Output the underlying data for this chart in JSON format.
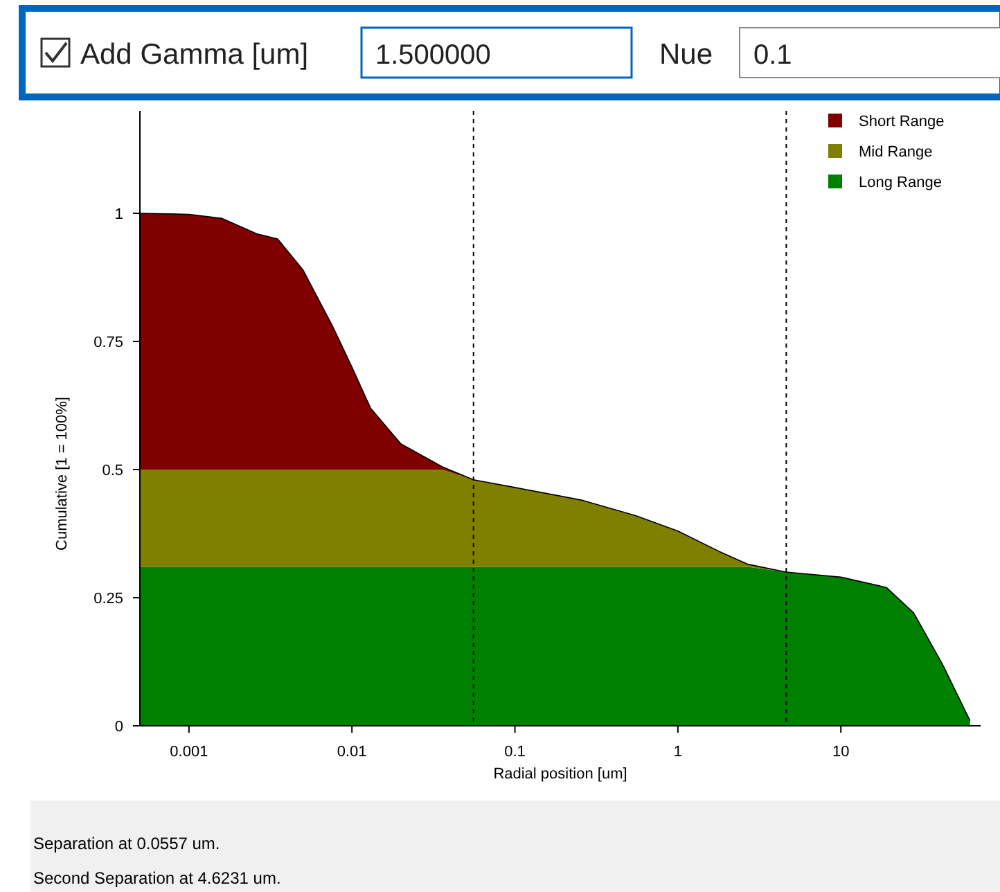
{
  "chart_data": {
    "type": "area",
    "stacked": true,
    "log": "x",
    "xlabel": "Radial position [um]",
    "ylabel": "Cumulative  [1 = 100%]",
    "x": [
      0.0005,
      0.001,
      0.0016,
      0.0026,
      0.0035,
      0.005,
      0.0076,
      0.01,
      0.013,
      0.02,
      0.036,
      0.0557,
      0.1,
      0.26,
      0.55,
      1,
      1.8,
      2.7,
      4.6,
      10,
      19,
      28,
      42,
      62
    ],
    "series": [
      {
        "name": "Long Range",
        "color": "#008000",
        "values": [
          0.31,
          0.31,
          0.31,
          0.31,
          0.31,
          0.31,
          0.31,
          0.31,
          0.31,
          0.31,
          0.31,
          0.31,
          0.31,
          0.31,
          0.31,
          0.31,
          0.31,
          0.31,
          0.3,
          0.29,
          0.27,
          0.22,
          0.12,
          0.01
        ]
      },
      {
        "name": "Mid Range",
        "color": "#808000",
        "values": [
          0.19,
          0.19,
          0.19,
          0.19,
          0.19,
          0.19,
          0.19,
          0.19,
          0.19,
          0.19,
          0.19,
          0.17,
          0.155,
          0.13,
          0.1,
          0.07,
          0.03,
          0.005,
          0,
          0,
          0,
          0,
          0,
          0
        ]
      },
      {
        "name": "Short Range",
        "color": "#800000",
        "values": [
          0.5,
          0.498,
          0.49,
          0.46,
          0.45,
          0.39,
          0.28,
          0.2,
          0.12,
          0.05,
          0.005,
          0,
          0,
          0,
          0,
          0,
          0,
          0,
          0,
          0,
          0,
          0,
          0,
          0
        ]
      }
    ],
    "xlim": [
      0.0005,
      72
    ],
    "xticks": [
      0.001,
      0.01,
      0.1,
      1,
      10
    ],
    "ylim": [
      0,
      1.2
    ],
    "yticks": [
      0,
      0.25,
      0.5,
      0.75,
      1
    ],
    "grid": false,
    "legend": "top right",
    "ref_lines": [
      {
        "axis": "x",
        "value": 0.0557,
        "line_style": "dashed",
        "color": "#000000"
      },
      {
        "axis": "x",
        "value": 4.6231,
        "line_style": "dashed",
        "color": "#000000"
      }
    ],
    "annotations": [
      "Add Gamma [um]",
      "1.500000",
      "Nue",
      "0.1",
      "Separation at 0.0557 um.",
      "Second Separation at 4.6231 um."
    ]
  }
}
